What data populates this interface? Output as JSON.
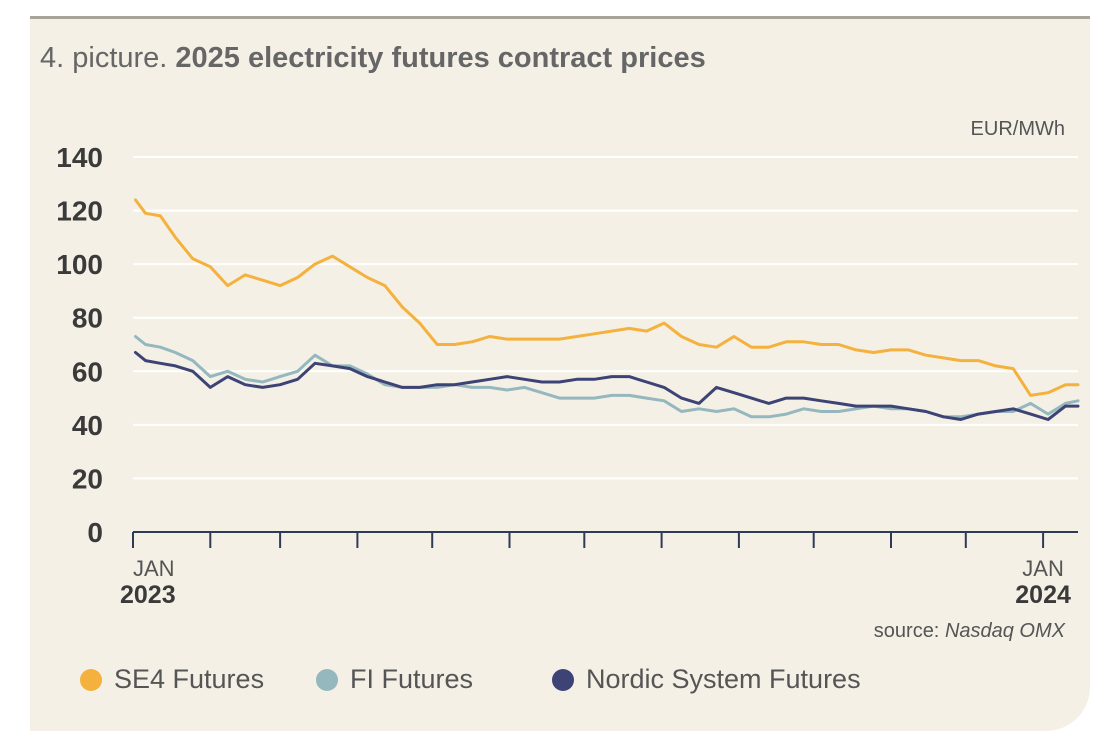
{
  "title": {
    "prefix": "4. picture.",
    "main": "2025 electricity futures contract prices"
  },
  "unit_label": "EUR/MWh",
  "source": {
    "prefix": "source:",
    "name": "Nasdaq OMX"
  },
  "colors": {
    "SE4": "#f5b13d",
    "FI": "#95b7be",
    "Nordic": "#3d4374",
    "grid": "#ffffff",
    "axis": "#2f3a55"
  },
  "legend": [
    {
      "label": "SE4 Futures",
      "color": "#f5b13d"
    },
    {
      "label": "FI Futures",
      "color": "#95b7be"
    },
    {
      "label": "Nordic System Futures",
      "color": "#3d4374"
    }
  ],
  "chart_data": {
    "type": "line",
    "title": "2025 electricity futures contract prices",
    "ylabel": "EUR/MWh",
    "ylim": [
      0,
      140
    ],
    "yticks": [
      0,
      20,
      40,
      60,
      80,
      100,
      120,
      140
    ],
    "xlim": [
      "2023-01-01",
      "2024-01-15"
    ],
    "x_tick_labels": [
      {
        "month": "JAN",
        "year": "2023"
      },
      {
        "month": "JAN",
        "year": "2024"
      }
    ],
    "grid": true,
    "legend_position": "bottom",
    "series": [
      {
        "name": "SE4 Futures",
        "color": "#f5b13d",
        "x": [
          "2023-01-02",
          "2023-01-06",
          "2023-01-12",
          "2023-01-18",
          "2023-01-25",
          "2023-02-01",
          "2023-02-08",
          "2023-02-15",
          "2023-02-22",
          "2023-03-01",
          "2023-03-08",
          "2023-03-15",
          "2023-03-22",
          "2023-03-29",
          "2023-04-05",
          "2023-04-12",
          "2023-04-19",
          "2023-04-26",
          "2023-05-03",
          "2023-05-10",
          "2023-05-17",
          "2023-05-24",
          "2023-05-31",
          "2023-06-07",
          "2023-06-14",
          "2023-06-21",
          "2023-06-28",
          "2023-07-05",
          "2023-07-12",
          "2023-07-19",
          "2023-07-26",
          "2023-08-02",
          "2023-08-09",
          "2023-08-16",
          "2023-08-23",
          "2023-08-30",
          "2023-09-06",
          "2023-09-13",
          "2023-09-20",
          "2023-09-27",
          "2023-10-04",
          "2023-10-11",
          "2023-10-18",
          "2023-10-25",
          "2023-11-01",
          "2023-11-08",
          "2023-11-15",
          "2023-11-22",
          "2023-11-29",
          "2023-12-06",
          "2023-12-13",
          "2023-12-20",
          "2023-12-27",
          "2024-01-03",
          "2024-01-10",
          "2024-01-15"
        ],
        "values": [
          124,
          119,
          118,
          110,
          102,
          99,
          92,
          96,
          94,
          92,
          95,
          100,
          103,
          99,
          95,
          92,
          84,
          78,
          70,
          70,
          71,
          73,
          72,
          72,
          72,
          72,
          73,
          74,
          75,
          76,
          75,
          78,
          73,
          70,
          69,
          73,
          69,
          69,
          71,
          71,
          70,
          70,
          68,
          67,
          68,
          68,
          66,
          65,
          64,
          64,
          62,
          61,
          51,
          52,
          55,
          55
        ]
      },
      {
        "name": "FI Futures",
        "color": "#95b7be",
        "x": [
          "2023-01-02",
          "2023-01-06",
          "2023-01-12",
          "2023-01-18",
          "2023-01-25",
          "2023-02-01",
          "2023-02-08",
          "2023-02-15",
          "2023-02-22",
          "2023-03-01",
          "2023-03-08",
          "2023-03-15",
          "2023-03-22",
          "2023-03-29",
          "2023-04-05",
          "2023-04-12",
          "2023-04-19",
          "2023-04-26",
          "2023-05-03",
          "2023-05-10",
          "2023-05-17",
          "2023-05-24",
          "2023-05-31",
          "2023-06-07",
          "2023-06-14",
          "2023-06-21",
          "2023-06-28",
          "2023-07-05",
          "2023-07-12",
          "2023-07-19",
          "2023-07-26",
          "2023-08-02",
          "2023-08-09",
          "2023-08-16",
          "2023-08-23",
          "2023-08-30",
          "2023-09-06",
          "2023-09-13",
          "2023-09-20",
          "2023-09-27",
          "2023-10-04",
          "2023-10-11",
          "2023-10-18",
          "2023-10-25",
          "2023-11-01",
          "2023-11-08",
          "2023-11-15",
          "2023-11-22",
          "2023-11-29",
          "2023-12-06",
          "2023-12-13",
          "2023-12-20",
          "2023-12-27",
          "2024-01-03",
          "2024-01-10",
          "2024-01-15"
        ],
        "values": [
          73,
          70,
          69,
          67,
          64,
          58,
          60,
          57,
          56,
          58,
          60,
          66,
          62,
          62,
          59,
          55,
          54,
          54,
          54,
          55,
          54,
          54,
          53,
          54,
          52,
          50,
          50,
          50,
          51,
          51,
          50,
          49,
          45,
          46,
          45,
          46,
          43,
          43,
          44,
          46,
          45,
          45,
          46,
          47,
          46,
          46,
          45,
          43,
          43,
          44,
          45,
          45,
          48,
          44,
          48,
          49
        ]
      },
      {
        "name": "Nordic System Futures",
        "color": "#3d4374",
        "x": [
          "2023-01-02",
          "2023-01-06",
          "2023-01-12",
          "2023-01-18",
          "2023-01-25",
          "2023-02-01",
          "2023-02-08",
          "2023-02-15",
          "2023-02-22",
          "2023-03-01",
          "2023-03-08",
          "2023-03-15",
          "2023-03-22",
          "2023-03-29",
          "2023-04-05",
          "2023-04-12",
          "2023-04-19",
          "2023-04-26",
          "2023-05-03",
          "2023-05-10",
          "2023-05-17",
          "2023-05-24",
          "2023-05-31",
          "2023-06-07",
          "2023-06-14",
          "2023-06-21",
          "2023-06-28",
          "2023-07-05",
          "2023-07-12",
          "2023-07-19",
          "2023-07-26",
          "2023-08-02",
          "2023-08-09",
          "2023-08-16",
          "2023-08-23",
          "2023-08-30",
          "2023-09-06",
          "2023-09-13",
          "2023-09-20",
          "2023-09-27",
          "2023-10-04",
          "2023-10-11",
          "2023-10-18",
          "2023-10-25",
          "2023-11-01",
          "2023-11-08",
          "2023-11-15",
          "2023-11-22",
          "2023-11-29",
          "2023-12-06",
          "2023-12-13",
          "2023-12-20",
          "2023-12-27",
          "2024-01-03",
          "2024-01-10",
          "2024-01-15"
        ],
        "values": [
          67,
          64,
          63,
          62,
          60,
          54,
          58,
          55,
          54,
          55,
          57,
          63,
          62,
          61,
          58,
          56,
          54,
          54,
          55,
          55,
          56,
          57,
          58,
          57,
          56,
          56,
          57,
          57,
          58,
          58,
          56,
          54,
          50,
          48,
          54,
          52,
          50,
          48,
          50,
          50,
          49,
          48,
          47,
          47,
          47,
          46,
          45,
          43,
          42,
          44,
          45,
          46,
          44,
          42,
          47,
          47
        ]
      }
    ]
  }
}
